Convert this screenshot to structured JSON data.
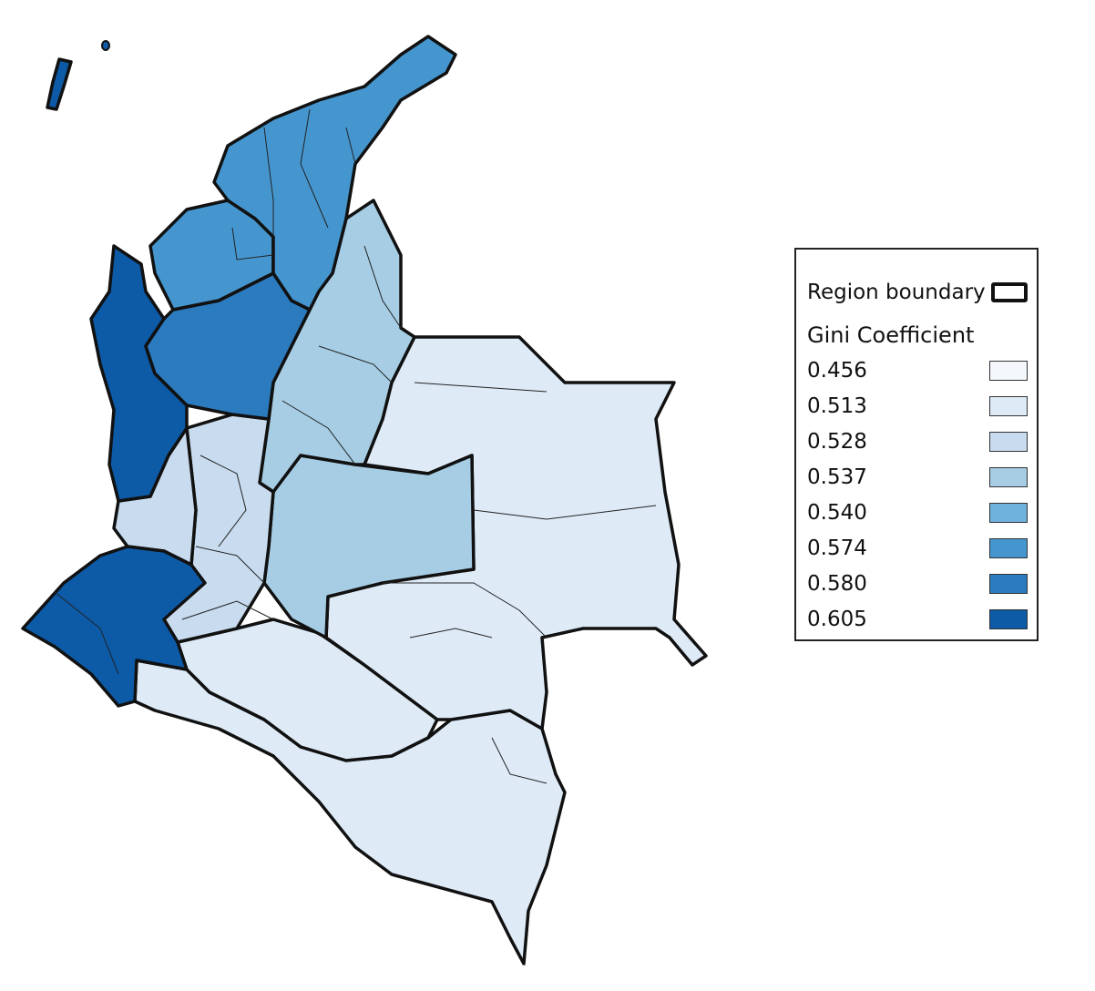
{
  "legend": {
    "boundary_label": "Region boundary",
    "title": "Gini Coefficient",
    "classes": [
      {
        "value": "0.456",
        "color": "#f4f8fd"
      },
      {
        "value": "0.513",
        "color": "#deebf7"
      },
      {
        "value": "0.528",
        "color": "#c9dcef"
      },
      {
        "value": "0.537",
        "color": "#a6cde3"
      },
      {
        "value": "0.540",
        "color": "#6fb2de"
      },
      {
        "value": "0.574",
        "color": "#4596cf"
      },
      {
        "value": "0.580",
        "color": "#2c7bbf"
      },
      {
        "value": "0.605",
        "color": "#0d5aa7"
      }
    ]
  },
  "regions": [
    {
      "id": "san-andres",
      "class": "0.605"
    },
    {
      "id": "caribe",
      "class": "0.574"
    },
    {
      "id": "cordoba-sucre",
      "class": "0.574"
    },
    {
      "id": "antioquia",
      "class": "0.580"
    },
    {
      "id": "choco",
      "class": "0.605"
    },
    {
      "id": "narino-cauca",
      "class": "0.605"
    },
    {
      "id": "santanderes-boyaca",
      "class": "0.537"
    },
    {
      "id": "cundinamarca-meta",
      "class": "0.537"
    },
    {
      "id": "eje-cafetero-valle",
      "class": "0.528"
    },
    {
      "id": "huila-tolima",
      "class": "0.528"
    },
    {
      "id": "caqueta-putumayo",
      "class": "0.513"
    },
    {
      "id": "amazonia",
      "class": "0.513"
    },
    {
      "id": "orinoquia",
      "class": "0.513"
    }
  ]
}
